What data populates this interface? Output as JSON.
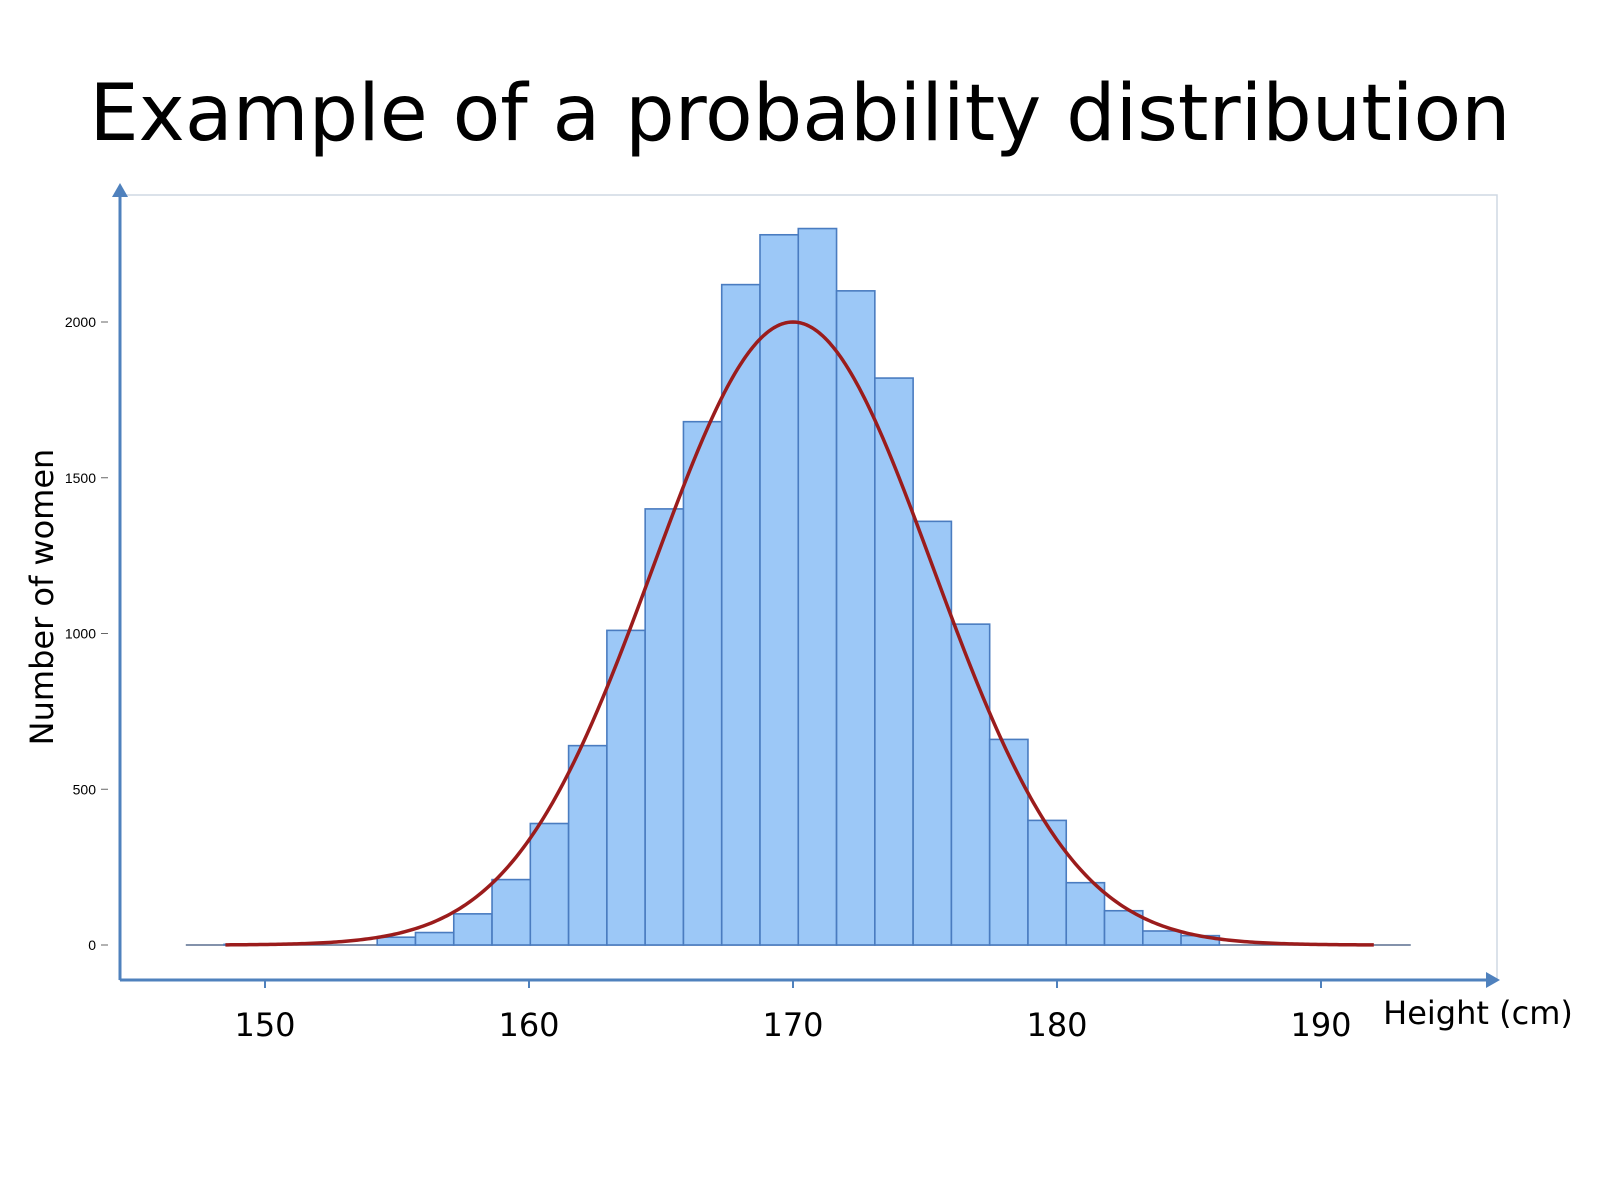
{
  "slide": {
    "title": "Example of a probability distribution"
  },
  "chart_data": {
    "type": "bar",
    "title": "Example of a probability distribution",
    "xlabel": "Height (cm)",
    "ylabel": "Number of women",
    "xlim": [
      144.5,
      193.5
    ],
    "ylim": [
      -120,
      2520
    ],
    "x_ticks": [
      150,
      160,
      170,
      180,
      190
    ],
    "y_ticks": [
      0,
      500,
      1000,
      1500,
      2000
    ],
    "bin_width": 1.45,
    "bin_starts": [
      147.0,
      148.45,
      149.9,
      151.35,
      152.8,
      154.25,
      155.7,
      157.15,
      158.6,
      160.05,
      161.5,
      162.95,
      164.4,
      165.85,
      167.3,
      168.75,
      170.2,
      171.65,
      173.1,
      174.55,
      176.0,
      177.45,
      178.9,
      180.35,
      181.8,
      183.25,
      184.7,
      186.15,
      187.6,
      189.05,
      190.5,
      191.95,
      193.4
    ],
    "values": [
      0,
      2,
      0,
      0,
      0,
      25,
      40,
      100,
      210,
      390,
      640,
      1010,
      1400,
      1680,
      2120,
      2280,
      2300,
      2100,
      1820,
      1360,
      1030,
      660,
      400,
      200,
      110,
      45,
      30,
      0,
      0,
      0,
      0,
      0,
      0
    ],
    "series": [
      {
        "name": "",
        "type": "line",
        "note_mean": 170,
        "sd": 5.3,
        "peak": 2000,
        "x_range": [
          148.5,
          192
        ]
      }
    ],
    "colors": {
      "bar_fill": "#9cc8f7",
      "bar_stroke": "#4a7cc0",
      "curve": "#9b1c1c",
      "axis": "#4f81bd",
      "frame": "#cfd8e3"
    }
  }
}
